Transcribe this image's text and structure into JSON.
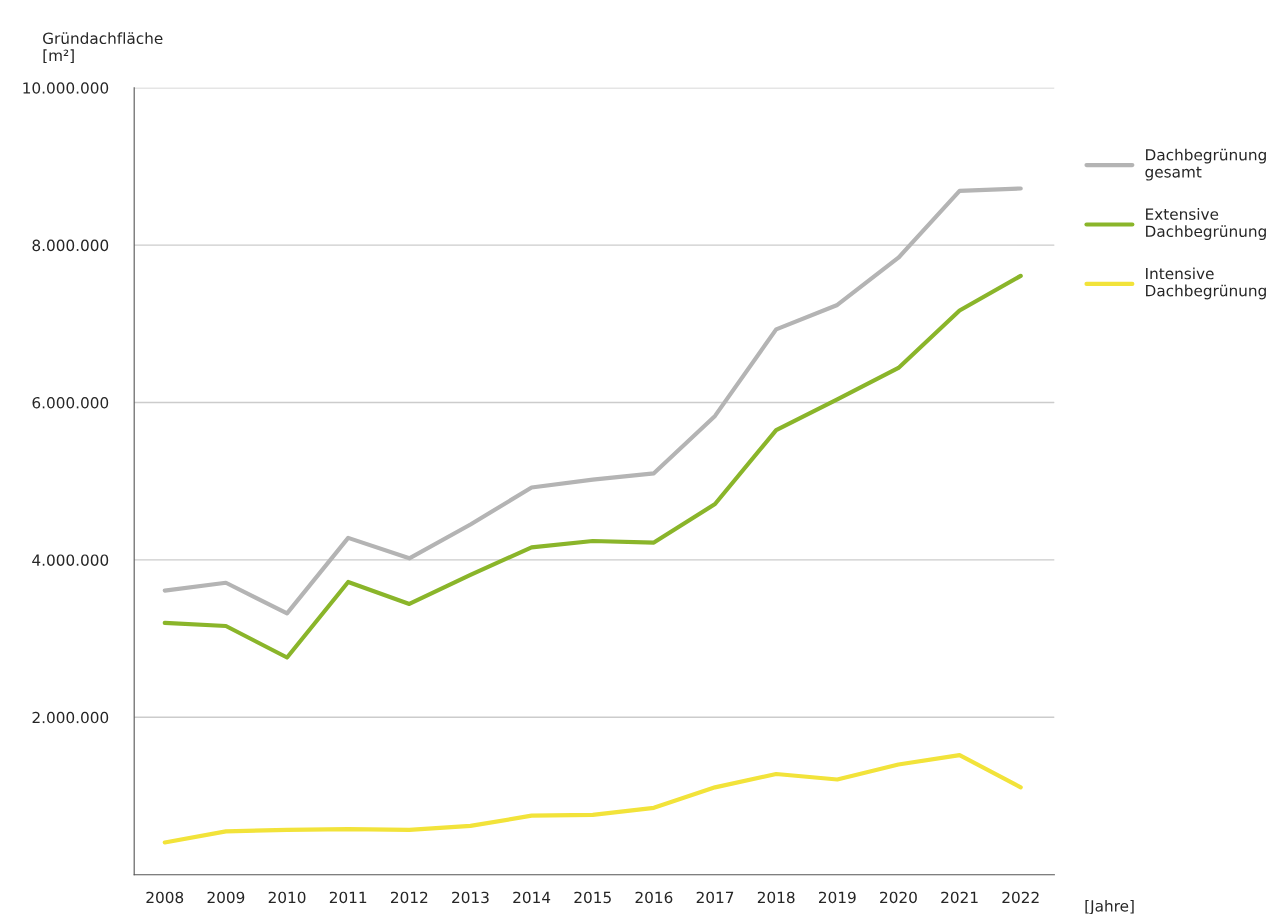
{
  "chart_data": {
    "type": "line",
    "ylabel": "Gründachfläche\n[m²]",
    "xlabel": "[Jahre]",
    "categories": [
      "2008",
      "2009",
      "2010",
      "2011",
      "2012",
      "2013",
      "2014",
      "2015",
      "2016",
      "2017",
      "2018",
      "2019",
      "2020",
      "2021",
      "2022"
    ],
    "series": [
      {
        "name": "Dachbegrünung\ngesamt",
        "color": "#b4b4b4",
        "values": [
          3610000,
          3710000,
          3320000,
          4280000,
          4020000,
          4450000,
          4920000,
          5020000,
          5100000,
          5830000,
          6930000,
          7240000,
          7840000,
          8690000,
          8720000
        ]
      },
      {
        "name": "Extensive\nDachbegrünung",
        "color": "#8ab52a",
        "values": [
          3200000,
          3160000,
          2760000,
          3720000,
          3440000,
          3810000,
          4160000,
          4240000,
          4220000,
          4710000,
          5650000,
          6040000,
          6440000,
          7170000,
          7610000
        ]
      },
      {
        "name": "Intensive\nDachbegrünung",
        "color": "#f2e33a",
        "values": [
          410000,
          550000,
          570000,
          580000,
          570000,
          620000,
          750000,
          760000,
          850000,
          1110000,
          1280000,
          1210000,
          1400000,
          1520000,
          1110000
        ]
      }
    ],
    "ylim": [
      0,
      10000000
    ],
    "yticks": [
      {
        "value": 2000000,
        "label": "2.000.000"
      },
      {
        "value": 4000000,
        "label": "4.000.000"
      },
      {
        "value": 6000000,
        "label": "6.000.000"
      },
      {
        "value": 8000000,
        "label": "8.000.000"
      },
      {
        "value": 10000000,
        "label": "10.000.000"
      }
    ],
    "grid": "y",
    "legend": "top right",
    "marker": "none",
    "line_style": "solid"
  }
}
